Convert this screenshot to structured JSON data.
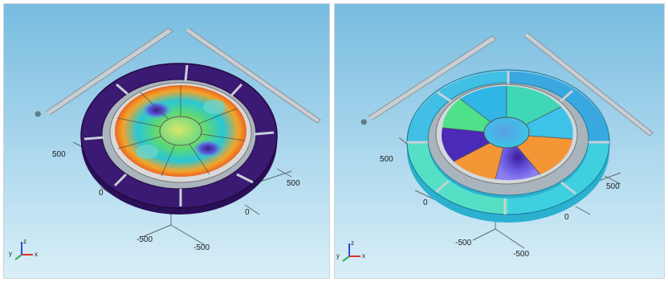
{
  "left_view": {
    "axis_ticks": {
      "y_500": "500",
      "y_0": "0",
      "x_500": "500",
      "x_0": "0",
      "z_neg500_a": "-500",
      "z_neg500_b": "-500"
    },
    "triad": {
      "x": "x",
      "y": "y",
      "z": "z"
    }
  },
  "right_view": {
    "axis_ticks": {
      "y_500": "500",
      "y_0": "0",
      "x_500": "500",
      "x_0": "0",
      "z_neg500_a": "-500",
      "z_neg500_b": "-500"
    },
    "triad": {
      "x": "x",
      "y": "y",
      "z": "z"
    }
  },
  "colors": {
    "background_top": "#7cbfe2",
    "background_bottom": "#d7eef8",
    "outer_ring_left": "#3a1a72",
    "outer_ring_right": "#37c6e6",
    "triad_x": "#e0302a",
    "triad_y": "#2aa84a",
    "triad_z": "#2a4ae0"
  }
}
